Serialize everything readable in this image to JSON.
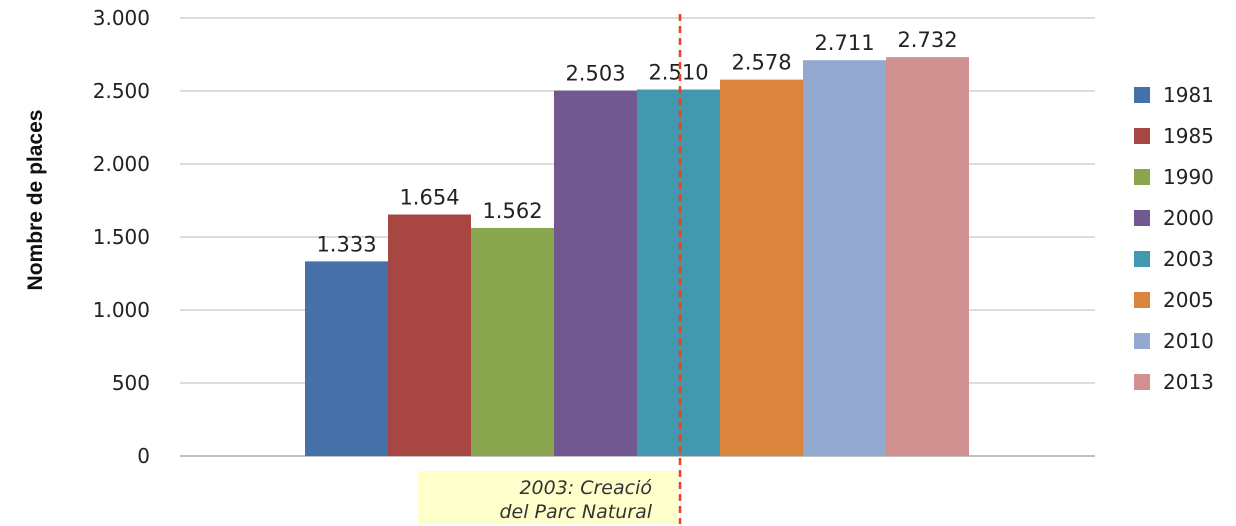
{
  "chart_data": {
    "type": "bar",
    "ylabel": "Nombre de places",
    "ylim": [
      0,
      3000
    ],
    "yticks": [
      0,
      500,
      1000,
      1500,
      2000,
      2500,
      3000
    ],
    "ytick_labels": [
      "0",
      "500",
      "1.000",
      "1.500",
      "2.000",
      "2.500",
      "3.000"
    ],
    "grid": true,
    "legend_position": "right",
    "series": [
      {
        "name": "1981",
        "value": 1333,
        "label": "1.333",
        "color": "#4570a8"
      },
      {
        "name": "1985",
        "value": 1654,
        "label": "1.654",
        "color": "#a84643"
      },
      {
        "name": "1990",
        "value": 1562,
        "label": "1.562",
        "color": "#89a54e"
      },
      {
        "name": "2000",
        "value": 2503,
        "label": "2.503",
        "color": "#71588f"
      },
      {
        "name": "2003",
        "value": 2510,
        "label": "2.510",
        "color": "#4198af"
      },
      {
        "name": "2005",
        "value": 2578,
        "label": "2.578",
        "color": "#db843d"
      },
      {
        "name": "2010",
        "value": 2711,
        "label": "2.711",
        "color": "#93a9cf"
      },
      {
        "name": "2013",
        "value": 2732,
        "label": "2.732",
        "color": "#d09190"
      }
    ],
    "annotation": {
      "lines": [
        "2003: Creació",
        "del Parc Natural"
      ],
      "marker_color": "#e8421f",
      "box_color": "#ffffcc"
    }
  }
}
